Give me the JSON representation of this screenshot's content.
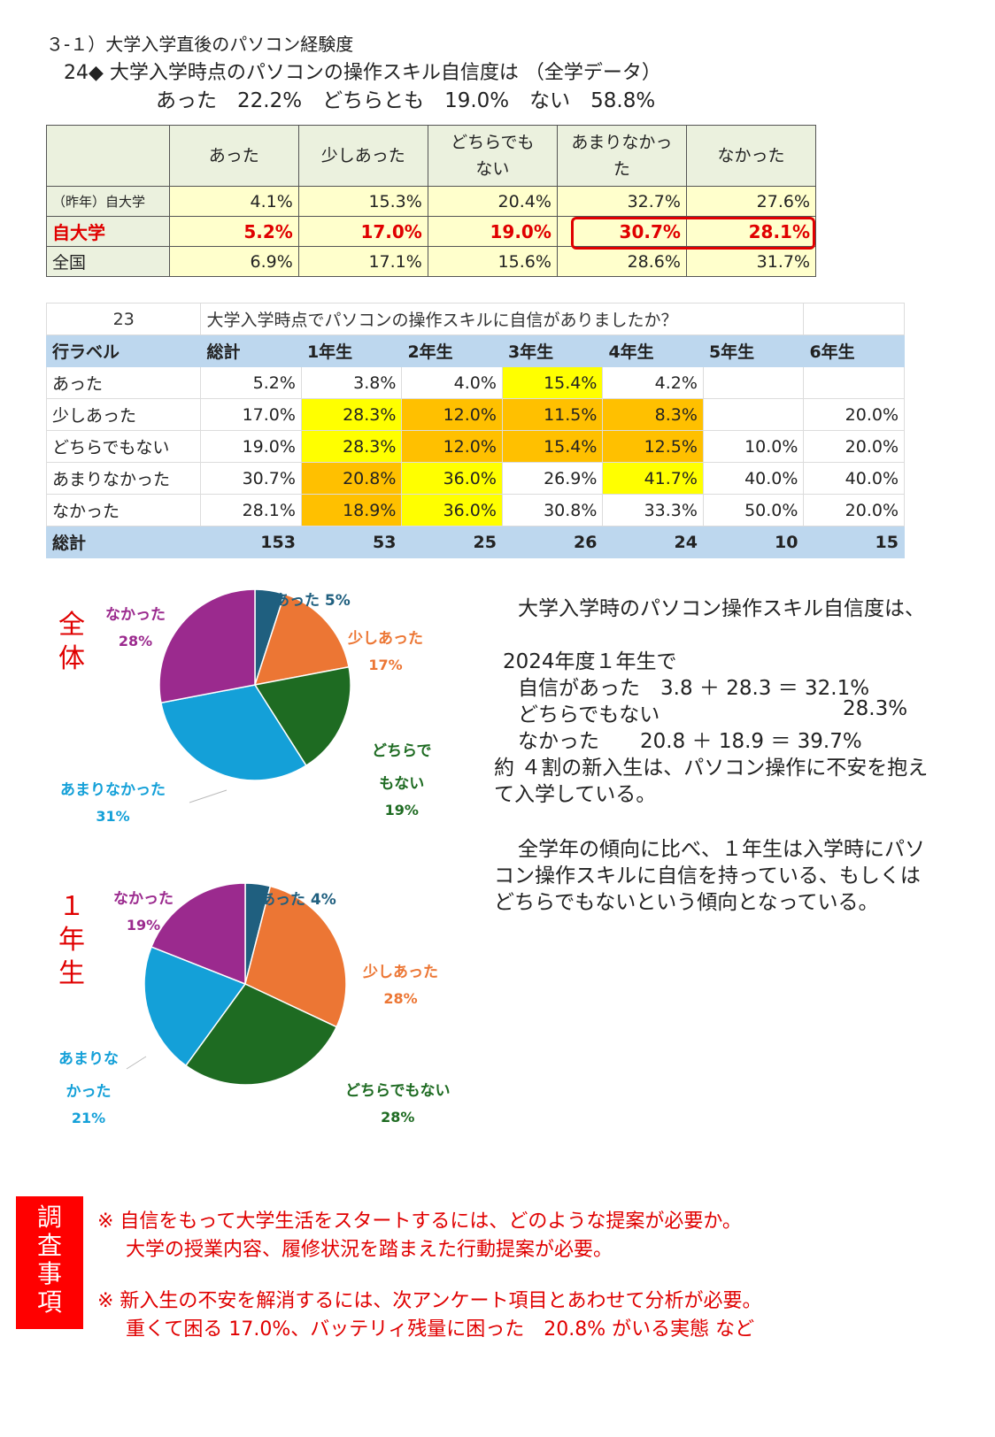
{
  "header": {
    "line1": "３-１）大学入学直後のパソコン経験度",
    "line2": "24◆ 大学入学時点のパソコンの操作スキル自信度は （全学データ）",
    "line3": "あった　22.2%　どちらとも　19.0%　ない　58.8%"
  },
  "table1": {
    "columns": [
      "あった",
      "少しあった",
      "どちらでも\nない",
      "あまりなかっ\nた",
      "なかった"
    ],
    "rows": [
      {
        "label": "（昨年）自大学",
        "values": [
          "4.1%",
          "15.3%",
          "20.4%",
          "32.7%",
          "27.6%"
        ]
      },
      {
        "label": "自大学",
        "values": [
          "5.2%",
          "17.0%",
          "19.0%",
          "30.7%",
          "28.1%"
        ]
      },
      {
        "label": "全国",
        "values": [
          "6.9%",
          "17.1%",
          "15.6%",
          "28.6%",
          "31.7%"
        ]
      }
    ]
  },
  "table2": {
    "qnum": "23",
    "question": "大学入学時点でパソコンの操作スキルに自信がありましたか？",
    "headers": [
      "行ラベル",
      "総計",
      "1年生",
      "2年生",
      "3年生",
      "4年生",
      "5年生",
      "6年生"
    ],
    "rows": [
      {
        "label": "あった",
        "values": [
          "5.2%",
          "3.8%",
          "4.0%",
          "15.4%",
          "4.2%",
          "",
          ""
        ]
      },
      {
        "label": "少しあった",
        "values": [
          "17.0%",
          "28.3%",
          "12.0%",
          "11.5%",
          "8.3%",
          "",
          "20.0%"
        ]
      },
      {
        "label": "どちらでもない",
        "values": [
          "19.0%",
          "28.3%",
          "12.0%",
          "15.4%",
          "12.5%",
          "10.0%",
          "20.0%"
        ]
      },
      {
        "label": "あまりなかった",
        "values": [
          "30.7%",
          "20.8%",
          "36.0%",
          "26.9%",
          "41.7%",
          "40.0%",
          "40.0%"
        ]
      },
      {
        "label": "なかった",
        "values": [
          "28.1%",
          "18.9%",
          "36.0%",
          "30.8%",
          "33.3%",
          "50.0%",
          "20.0%"
        ]
      }
    ],
    "total": {
      "label": "総計",
      "values": [
        "153",
        "53",
        "25",
        "26",
        "24",
        "10",
        "15"
      ]
    }
  },
  "colors": {
    "atta": "#1f5f7f",
    "sukoshi": "#ec7634",
    "dochira": "#1e6b22",
    "amari": "#14a0d8",
    "nakatta": "#9b2a8e",
    "red": "#e00000"
  },
  "chart_data": [
    {
      "type": "pie",
      "title": "全体",
      "labels": [
        "あった",
        "少しあった",
        "どちらでもない",
        "あまりなかった",
        "なかった"
      ],
      "values": [
        5,
        17,
        19,
        31,
        28
      ],
      "label_text": [
        "あった 5%",
        "少しあった",
        "どちらで",
        "あまりなかった",
        "なかった"
      ],
      "label_pct": [
        "",
        "17%",
        "19%",
        "31%",
        "28%"
      ],
      "label_extra": [
        "",
        "",
        "もない",
        "",
        ""
      ]
    },
    {
      "type": "pie",
      "title": "1年生",
      "labels": [
        "あった",
        "少しあった",
        "どちらでもない",
        "あまりなかった",
        "なかった"
      ],
      "values": [
        4,
        28,
        28,
        21,
        19
      ],
      "label_text": [
        "あった 4%",
        "少しあった",
        "どちらでもない",
        "あまりな",
        "なかった"
      ],
      "label_pct": [
        "",
        "28%",
        "28%",
        "21%",
        "19%"
      ],
      "label_extra": [
        "",
        "",
        "",
        "かった",
        ""
      ]
    }
  ],
  "side_labels": {
    "overall": "全\n体",
    "first_year": "１\n年\n生"
  },
  "commentary": {
    "p1": "大学入学時のパソコン操作スキル自信度は、",
    "p2": "2024年度１年生で",
    "p3a": "自信があった　3.8 ＋ 28.3 ＝ 32.1%",
    "p3b_label": "どちらでもない",
    "p3b_val": "28.3%",
    "p3c": "なかった　　20.8 ＋ 18.9 ＝ 39.7%",
    "p4": "約 ４割の新入生は、パソコン操作に不安を抱え",
    "p5": "て入学している。",
    "p6": "全学年の傾向に比べ、１年生は入学時にパソ",
    "p7": "コン操作スキルに自信を持っている、もしくは",
    "p8": "どちらでもないという傾向となっている。"
  },
  "survey": {
    "badge": "調\n査\n事\n項",
    "note1a": "※ 自信をもって大学生活をスタートするには、どのような提案が必要か。",
    "note1b": "大学の授業内容、履修状況を踏まえた行動提案が必要。",
    "note2a": "※ 新入生の不安を解消するには、次アンケート項目とあわせて分析が必要。",
    "note2b": "重くて困る 17.0%、バッテリィ残量に困った　20.8% がいる実態 など"
  }
}
